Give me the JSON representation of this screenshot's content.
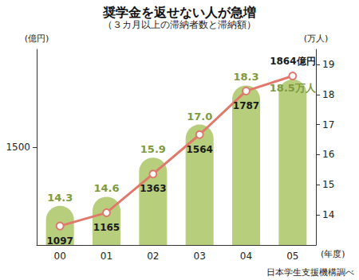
{
  "chart_data": {
    "type": "bar",
    "title": "奨学金を返せない人が急増",
    "subtitle": "（３カ月以上の滞納者数と滞納額）",
    "annotations": [
      "日本学生支援機構調べ"
    ],
    "x_label": "(年度)",
    "y_label": "(億円)",
    "y2_label": "(万人)",
    "categories": [
      "00",
      "01",
      "02",
      "03",
      "04",
      "05"
    ],
    "series": [
      {
        "type": "bar",
        "axis": "y2",
        "color": "#b7cf7c",
        "values": [
          14.3,
          14.6,
          15.9,
          17.0,
          18.3,
          18.5
        ],
        "value_labels": [
          "14.3",
          "14.6",
          "15.9",
          "17.0",
          "18.3",
          "18.5万人"
        ]
      },
      {
        "type": "line",
        "color": "#e0796b",
        "marker": "circle",
        "values": [
          1097,
          1165,
          1363,
          1564,
          1787,
          1864
        ],
        "value_labels": [
          "1097",
          "1165",
          "1363",
          "1564",
          "1787",
          "1864億円"
        ]
      }
    ],
    "ylim": [
      1000,
      2000
    ],
    "yticks": [
      1500
    ],
    "y2lim": [
      13,
      19.5
    ],
    "y2ticks": [
      14,
      15,
      16,
      17,
      18,
      19
    ],
    "grid": false,
    "data_labels": true
  }
}
